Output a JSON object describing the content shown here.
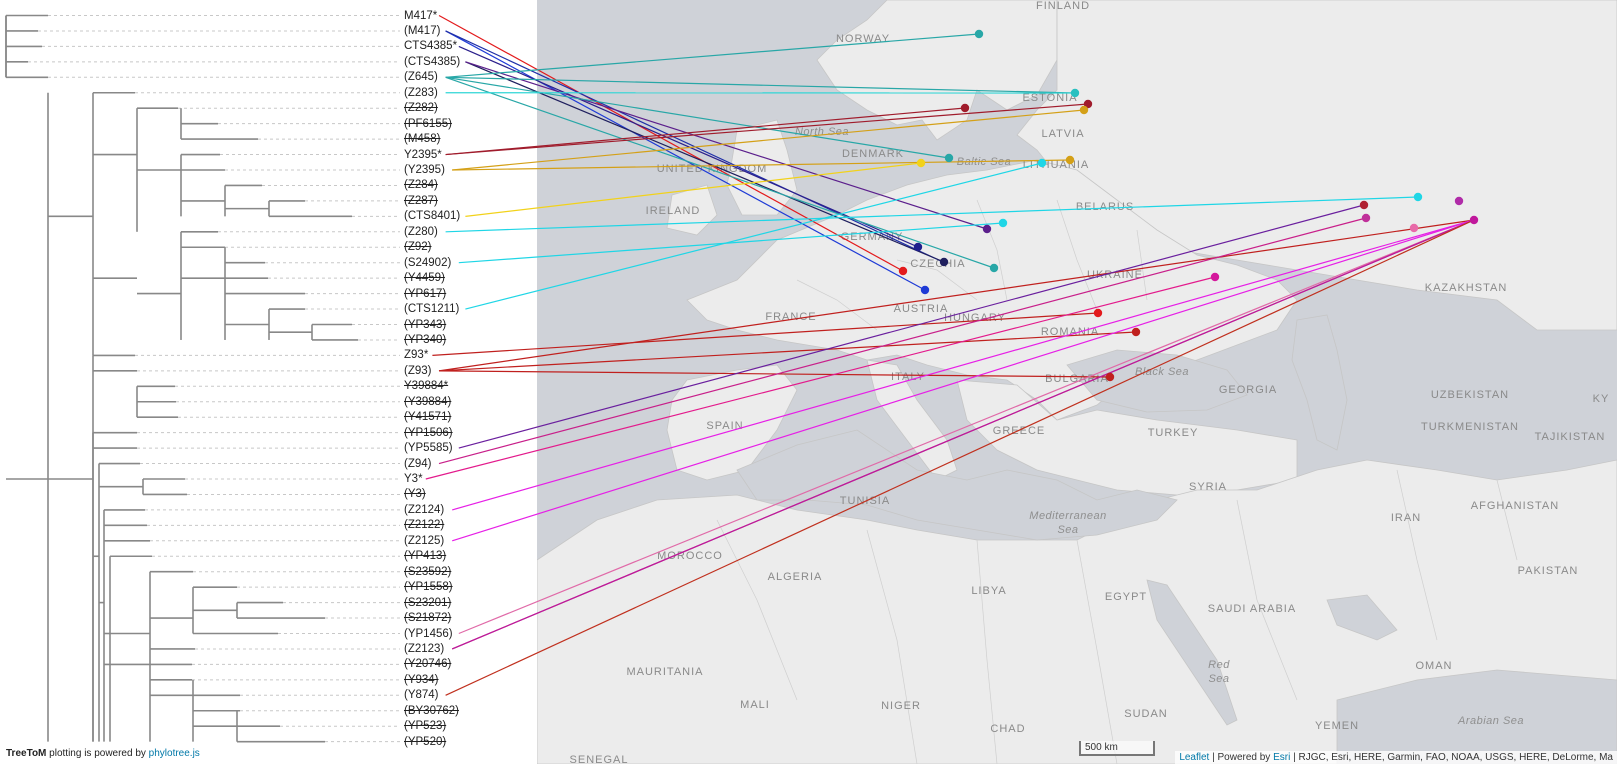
{
  "tree": {
    "leaves": [
      {
        "label": "M417*",
        "struck": false
      },
      {
        "label": "(M417)",
        "struck": false
      },
      {
        "label": "CTS4385*",
        "struck": false
      },
      {
        "label": "(CTS4385)",
        "struck": false
      },
      {
        "label": "(Z645)",
        "struck": false
      },
      {
        "label": "(Z283)",
        "struck": false
      },
      {
        "label": "(Z282)",
        "struck": true
      },
      {
        "label": "(PF6155)",
        "struck": true
      },
      {
        "label": "(M458)",
        "struck": true
      },
      {
        "label": "Y2395*",
        "struck": false
      },
      {
        "label": "(Y2395)",
        "struck": false
      },
      {
        "label": "(Z284)",
        "struck": true
      },
      {
        "label": "(Z287)",
        "struck": true
      },
      {
        "label": "(CTS8401)",
        "struck": false
      },
      {
        "label": "(Z280)",
        "struck": false
      },
      {
        "label": "(Z92)",
        "struck": true
      },
      {
        "label": "(S24902)",
        "struck": false
      },
      {
        "label": "(Y4459)",
        "struck": true
      },
      {
        "label": "(YP617)",
        "struck": true
      },
      {
        "label": "(CTS1211)",
        "struck": false
      },
      {
        "label": "(YP343)",
        "struck": true
      },
      {
        "label": "(YP340)",
        "struck": true
      },
      {
        "label": "Z93*",
        "struck": false
      },
      {
        "label": "(Z93)",
        "struck": false
      },
      {
        "label": "Y39884*",
        "struck": true
      },
      {
        "label": "(Y39884)",
        "struck": true
      },
      {
        "label": "(Y41571)",
        "struck": true
      },
      {
        "label": "(YP1506)",
        "struck": true
      },
      {
        "label": "(YP5585)",
        "struck": false
      },
      {
        "label": "(Z94)",
        "struck": false
      },
      {
        "label": "Y3*",
        "struck": false
      },
      {
        "label": "(Y3)",
        "struck": true
      },
      {
        "label": "(Z2124)",
        "struck": false
      },
      {
        "label": "(Z2122)",
        "struck": true
      },
      {
        "label": "(Z2125)",
        "struck": false
      },
      {
        "label": "(YP413)",
        "struck": true
      },
      {
        "label": "(S23592)",
        "struck": true
      },
      {
        "label": "(YP1558)",
        "struck": true
      },
      {
        "label": "(S23201)",
        "struck": true
      },
      {
        "label": "(S21872)",
        "struck": true
      },
      {
        "label": "(YP1456)",
        "struck": false
      },
      {
        "label": "(Z2123)",
        "struck": false
      },
      {
        "label": "(Y20746)",
        "struck": true
      },
      {
        "label": "(Y934)",
        "struck": true
      },
      {
        "label": "(Y874)",
        "struck": false
      },
      {
        "label": "(BY30762)",
        "struck": true
      },
      {
        "label": "(YP523)",
        "struck": true
      },
      {
        "label": "(YP520)",
        "struck": true
      }
    ]
  },
  "map": {
    "country_labels": [
      "FINLAND",
      "NORWAY",
      "ESTONIA",
      "LATVIA",
      "DENMARK",
      "LITHUANIA",
      "BELARUS",
      "IRELAND",
      "UNITED KINGDOM",
      "GERMANY",
      "CZECHIA",
      "UKRAINE",
      "KAZAKHSTAN",
      "FRANCE",
      "AUSTRIA",
      "HUNGARY",
      "ROMANIA",
      "ITALY",
      "BULGARIA",
      "GEORGIA",
      "UZBEKISTAN",
      "KY",
      "SPAIN",
      "GREECE",
      "TURKEY",
      "TURKMENISTAN",
      "TAJIKISTAN",
      "TUNISIA",
      "SYRIA",
      "IRAN",
      "AFGHANISTAN",
      "MOROCCO",
      "ALGERIA",
      "LIBYA",
      "EGYPT",
      "SAUDI ARABIA",
      "PAKISTAN",
      "MAURITANIA",
      "MALI",
      "NIGER",
      "CHAD",
      "SUDAN",
      "OMAN",
      "YEMEN",
      "SENEGAL"
    ],
    "sea_labels": [
      "North Sea",
      "Baltic Sea",
      "Black Sea",
      "Mediterranean Sea",
      "Red Sea",
      "Arabian Sea"
    ],
    "scale_label": "500 km",
    "colors": {
      "land": "#f2f2f2",
      "water": "#cfd2d8",
      "border": "#c9c9c9"
    }
  },
  "footer": {
    "brand": "TreeToM",
    "text_mid": " plotting is powered by ",
    "link": "phylotree.js"
  },
  "attribution": {
    "leaflet": "Leaflet",
    "sep": " | Powered by ",
    "esri": "Esri",
    "rest": " | RJGC, Esri, HERE, Garmin, FAO, NOAA, USGS, HERE, DeLorme, Ma"
  }
}
